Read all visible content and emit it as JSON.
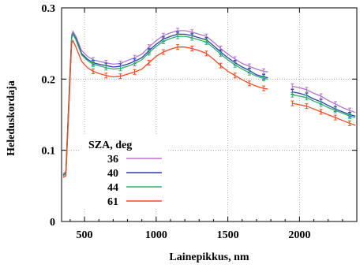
{
  "chart_data": {
    "type": "line",
    "title": "",
    "xlabel": "Lainepikkus, nm",
    "ylabel": "Heleduskordaja",
    "xlim": [
      340,
      2400
    ],
    "ylim": [
      0,
      0.3
    ],
    "xticks": [
      500,
      1000,
      1500,
      2000
    ],
    "yticks": [
      0,
      0.1,
      0.2,
      0.3
    ],
    "xtick_labels": [
      "500",
      "1000",
      "1500",
      "2000"
    ],
    "ytick_labels": [
      "0",
      "0.1",
      "0.2",
      "0.3"
    ],
    "grid": true,
    "legend": {
      "title": "SZA, deg",
      "placement": "center-left"
    },
    "gap": [
      1790,
      1940
    ],
    "series": [
      {
        "name": "36",
        "color": "#b374c8",
        "segments": [
          [
            [
              350,
              0.067
            ],
            [
              370,
              0.07
            ],
            [
              390,
              0.17
            ],
            [
              410,
              0.262
            ],
            [
              420,
              0.267
            ],
            [
              440,
              0.26
            ],
            [
              480,
              0.24
            ],
            [
              520,
              0.232
            ],
            [
              560,
              0.227
            ],
            [
              600,
              0.225
            ],
            [
              650,
              0.223
            ],
            [
              700,
              0.221
            ],
            [
              750,
              0.222
            ],
            [
              800,
              0.226
            ],
            [
              850,
              0.23
            ],
            [
              900,
              0.235
            ],
            [
              950,
              0.245
            ],
            [
              1000,
              0.254
            ],
            [
              1050,
              0.261
            ],
            [
              1100,
              0.265
            ],
            [
              1150,
              0.268
            ],
            [
              1200,
              0.268
            ],
            [
              1250,
              0.266
            ],
            [
              1300,
              0.263
            ],
            [
              1350,
              0.26
            ],
            [
              1400,
              0.252
            ],
            [
              1450,
              0.243
            ],
            [
              1500,
              0.235
            ],
            [
              1550,
              0.228
            ],
            [
              1600,
              0.222
            ],
            [
              1650,
              0.218
            ],
            [
              1700,
              0.214
            ],
            [
              1750,
              0.211
            ],
            [
              1780,
              0.21
            ]
          ],
          [
            [
              1950,
              0.19
            ],
            [
              2000,
              0.188
            ],
            [
              2050,
              0.185
            ],
            [
              2100,
              0.18
            ],
            [
              2150,
              0.176
            ],
            [
              2200,
              0.17
            ],
            [
              2250,
              0.165
            ],
            [
              2300,
              0.16
            ],
            [
              2350,
              0.156
            ],
            [
              2390,
              0.153
            ]
          ]
        ]
      },
      {
        "name": "40",
        "color": "#2c3fa8",
        "segments": [
          [
            [
              350,
              0.065
            ],
            [
              370,
              0.068
            ],
            [
              390,
              0.165
            ],
            [
              410,
              0.258
            ],
            [
              420,
              0.264
            ],
            [
              440,
              0.257
            ],
            [
              480,
              0.236
            ],
            [
              520,
              0.228
            ],
            [
              560,
              0.223
            ],
            [
              600,
              0.221
            ],
            [
              650,
              0.219
            ],
            [
              700,
              0.217
            ],
            [
              750,
              0.218
            ],
            [
              800,
              0.221
            ],
            [
              850,
              0.225
            ],
            [
              900,
              0.23
            ],
            [
              950,
              0.24
            ],
            [
              1000,
              0.249
            ],
            [
              1050,
              0.256
            ],
            [
              1100,
              0.26
            ],
            [
              1150,
              0.263
            ],
            [
              1200,
              0.263
            ],
            [
              1250,
              0.261
            ],
            [
              1300,
              0.258
            ],
            [
              1350,
              0.255
            ],
            [
              1400,
              0.247
            ],
            [
              1450,
              0.238
            ],
            [
              1500,
              0.23
            ],
            [
              1550,
              0.223
            ],
            [
              1600,
              0.217
            ],
            [
              1650,
              0.212
            ],
            [
              1700,
              0.206
            ],
            [
              1750,
              0.203
            ],
            [
              1780,
              0.202
            ]
          ],
          [
            [
              1950,
              0.182
            ],
            [
              2000,
              0.18
            ],
            [
              2050,
              0.177
            ],
            [
              2100,
              0.172
            ],
            [
              2150,
              0.168
            ],
            [
              2200,
              0.163
            ],
            [
              2250,
              0.158
            ],
            [
              2300,
              0.154
            ],
            [
              2350,
              0.15
            ],
            [
              2390,
              0.148
            ]
          ]
        ]
      },
      {
        "name": "44",
        "color": "#2aae6e",
        "segments": [
          [
            [
              350,
              0.064
            ],
            [
              370,
              0.067
            ],
            [
              390,
              0.163
            ],
            [
              410,
              0.257
            ],
            [
              420,
              0.263
            ],
            [
              440,
              0.255
            ],
            [
              480,
              0.234
            ],
            [
              520,
              0.226
            ],
            [
              560,
              0.221
            ],
            [
              600,
              0.219
            ],
            [
              650,
              0.216
            ],
            [
              700,
              0.214
            ],
            [
              750,
              0.215
            ],
            [
              800,
              0.218
            ],
            [
              850,
              0.222
            ],
            [
              900,
              0.227
            ],
            [
              950,
              0.237
            ],
            [
              1000,
              0.246
            ],
            [
              1050,
              0.253
            ],
            [
              1100,
              0.257
            ],
            [
              1150,
              0.26
            ],
            [
              1200,
              0.26
            ],
            [
              1250,
              0.258
            ],
            [
              1300,
              0.255
            ],
            [
              1350,
              0.252
            ],
            [
              1400,
              0.244
            ],
            [
              1450,
              0.235
            ],
            [
              1500,
              0.227
            ],
            [
              1550,
              0.22
            ],
            [
              1600,
              0.214
            ],
            [
              1650,
              0.209
            ],
            [
              1700,
              0.204
            ],
            [
              1750,
              0.201
            ],
            [
              1780,
              0.2
            ]
          ],
          [
            [
              1950,
              0.178
            ],
            [
              2000,
              0.176
            ],
            [
              2050,
              0.174
            ],
            [
              2100,
              0.169
            ],
            [
              2150,
              0.165
            ],
            [
              2200,
              0.16
            ],
            [
              2250,
              0.156
            ],
            [
              2300,
              0.152
            ],
            [
              2350,
              0.148
            ],
            [
              2390,
              0.146
            ]
          ]
        ]
      },
      {
        "name": "61",
        "color": "#f04a1f",
        "segments": [
          [
            [
              350,
              0.062
            ],
            [
              370,
              0.064
            ],
            [
              390,
              0.155
            ],
            [
              410,
              0.25
            ],
            [
              420,
              0.254
            ],
            [
              440,
              0.245
            ],
            [
              480,
              0.225
            ],
            [
              520,
              0.216
            ],
            [
              560,
              0.211
            ],
            [
              600,
              0.208
            ],
            [
              650,
              0.205
            ],
            [
              700,
              0.203
            ],
            [
              750,
              0.204
            ],
            [
              800,
              0.207
            ],
            [
              850,
              0.21
            ],
            [
              900,
              0.214
            ],
            [
              950,
              0.223
            ],
            [
              1000,
              0.232
            ],
            [
              1050,
              0.238
            ],
            [
              1100,
              0.242
            ],
            [
              1150,
              0.245
            ],
            [
              1200,
              0.245
            ],
            [
              1250,
              0.243
            ],
            [
              1300,
              0.24
            ],
            [
              1350,
              0.236
            ],
            [
              1400,
              0.228
            ],
            [
              1450,
              0.219
            ],
            [
              1500,
              0.211
            ],
            [
              1550,
              0.205
            ],
            [
              1600,
              0.199
            ],
            [
              1650,
              0.194
            ],
            [
              1700,
              0.19
            ],
            [
              1750,
              0.187
            ],
            [
              1780,
              0.186
            ]
          ],
          [
            [
              1950,
              0.166
            ],
            [
              2000,
              0.164
            ],
            [
              2050,
              0.162
            ],
            [
              2100,
              0.158
            ],
            [
              2150,
              0.154
            ],
            [
              2200,
              0.15
            ],
            [
              2250,
              0.146
            ],
            [
              2300,
              0.142
            ],
            [
              2350,
              0.138
            ],
            [
              2390,
              0.135
            ]
          ]
        ]
      }
    ]
  }
}
